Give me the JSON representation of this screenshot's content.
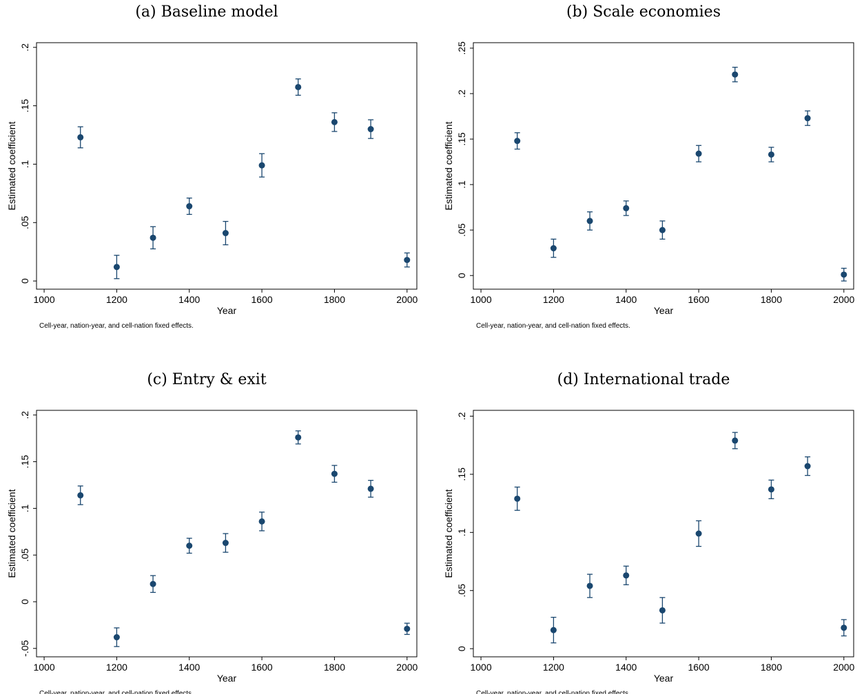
{
  "chart_data": [
    {
      "type": "scatter",
      "title": "(a) Baseline model",
      "xlabel": "Year",
      "ylabel": "Estimated coefficient",
      "note": "Cell-year, nation-year, and cell-nation fixed effects.",
      "color": "#1a476f",
      "x": [
        1100,
        1200,
        1300,
        1400,
        1500,
        1600,
        1700,
        1800,
        1900,
        2000
      ],
      "values": [
        0.123,
        0.012,
        0.037,
        0.064,
        0.041,
        0.099,
        0.166,
        0.136,
        0.13,
        0.018
      ],
      "errors": [
        0.009,
        0.01,
        0.0095,
        0.007,
        0.01,
        0.01,
        0.007,
        0.008,
        0.008,
        0.006
      ],
      "xlim": [
        979,
        2027
      ],
      "xticks": [
        1000,
        1200,
        1400,
        1600,
        1800,
        2000
      ],
      "ylim": [
        -0.007,
        0.204
      ],
      "yticks": [
        0,
        {
          "value": 0.05,
          "label": ".05"
        },
        {
          "value": 0.1,
          "label": ".1"
        },
        {
          "value": 0.15,
          "label": ".15"
        },
        {
          "value": 0.2,
          "label": ".2"
        }
      ]
    },
    {
      "type": "scatter",
      "title": "(b) Scale economies",
      "xlabel": "Year",
      "ylabel": "Estimated coefficient",
      "note": "Cell-year, nation-year, and cell-nation fixed effects.",
      "color": "#1a476f",
      "x": [
        1100,
        1200,
        1300,
        1400,
        1500,
        1600,
        1700,
        1800,
        1900,
        2000
      ],
      "values": [
        0.148,
        0.03,
        0.06,
        0.074,
        0.05,
        0.134,
        0.221,
        0.133,
        0.173,
        0.001
      ],
      "errors": [
        0.009,
        0.01,
        0.01,
        0.008,
        0.01,
        0.009,
        0.008,
        0.008,
        0.008,
        0.007
      ],
      "xlim": [
        979,
        2027
      ],
      "xticks": [
        1000,
        1200,
        1400,
        1600,
        1800,
        2000
      ],
      "ylim": [
        -0.015,
        0.256
      ],
      "yticks": [
        0,
        {
          "value": 0.05,
          "label": ".05"
        },
        {
          "value": 0.1,
          "label": ".1"
        },
        {
          "value": 0.15,
          "label": ".15"
        },
        {
          "value": 0.2,
          "label": ".2"
        },
        {
          "value": 0.25,
          "label": ".25"
        }
      ]
    },
    {
      "type": "scatter",
      "title": "(c) Entry & exit",
      "xlabel": "Year",
      "ylabel": "Estimated coefficient",
      "note": "Cell-year, nation-year, and cell-nation fixed effects.",
      "color": "#1a476f",
      "x": [
        1100,
        1200,
        1300,
        1400,
        1500,
        1600,
        1700,
        1800,
        1900,
        2000
      ],
      "values": [
        0.114,
        -0.038,
        0.019,
        0.06,
        0.063,
        0.086,
        0.176,
        0.137,
        0.121,
        -0.029
      ],
      "errors": [
        0.01,
        0.01,
        0.009,
        0.008,
        0.01,
        0.01,
        0.007,
        0.009,
        0.009,
        0.006
      ],
      "xlim": [
        979,
        2027
      ],
      "xticks": [
        1000,
        1200,
        1400,
        1600,
        1800,
        2000
      ],
      "ylim": [
        -0.059,
        0.205
      ],
      "yticks": [
        {
          "value": -0.05,
          "label": "-.05"
        },
        0,
        {
          "value": 0.05,
          "label": ".05"
        },
        {
          "value": 0.1,
          "label": ".1"
        },
        {
          "value": 0.15,
          "label": ".15"
        },
        {
          "value": 0.2,
          "label": ".2"
        }
      ]
    },
    {
      "type": "scatter",
      "title": "(d) International trade",
      "xlabel": "Year",
      "ylabel": "Estimated coefficient",
      "note": "Cell-year, nation-year, and cell-nation fixed effects.",
      "color": "#1a476f",
      "x": [
        1100,
        1200,
        1300,
        1400,
        1500,
        1600,
        1700,
        1800,
        1900,
        2000
      ],
      "values": [
        0.129,
        0.016,
        0.054,
        0.063,
        0.033,
        0.099,
        0.179,
        0.137,
        0.157,
        0.018
      ],
      "errors": [
        0.01,
        0.011,
        0.01,
        0.008,
        0.011,
        0.011,
        0.007,
        0.008,
        0.008,
        0.007
      ],
      "xlim": [
        979,
        2027
      ],
      "xticks": [
        1000,
        1200,
        1400,
        1600,
        1800,
        2000
      ],
      "ylim": [
        -0.007,
        0.205
      ],
      "yticks": [
        0,
        {
          "value": 0.05,
          "label": ".05"
        },
        {
          "value": 0.1,
          "label": ".1"
        },
        {
          "value": 0.15,
          "label": ".15"
        },
        {
          "value": 0.2,
          "label": ".2"
        }
      ]
    }
  ]
}
